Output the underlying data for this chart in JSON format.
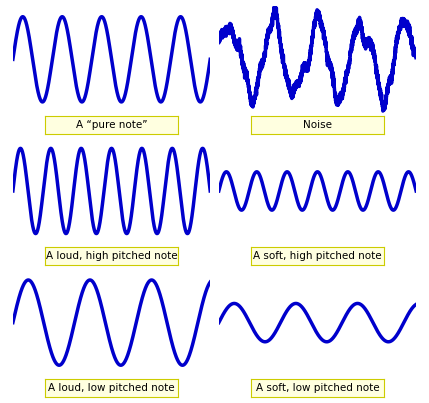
{
  "wave_color": "#0000CC",
  "line_width": 2.5,
  "background_color": "#FFFFFF",
  "label_bg_color": "#FFFFE0",
  "label_border_color": "#CCCC00",
  "label_text_color": "#000000",
  "label_fontsize": 7.5,
  "panels": [
    {
      "row": 0,
      "col": 0,
      "label": "A “pure note”",
      "type": "pure",
      "freq": 5.0,
      "amplitude": 1.0,
      "noise": 0,
      "noise_harmonics": []
    },
    {
      "row": 0,
      "col": 1,
      "label": "Noise",
      "type": "noise",
      "freq": 4.5,
      "amplitude": 0.85,
      "noise": 0.3,
      "noise_harmonics": [
        1.7,
        2.3,
        3.1,
        4.7,
        6.2
      ]
    },
    {
      "row": 1,
      "col": 0,
      "label": "A loud, high pitched note",
      "type": "pure",
      "freq": 6.5,
      "amplitude": 1.0,
      "noise": 0,
      "noise_harmonics": []
    },
    {
      "row": 1,
      "col": 1,
      "label": "A soft, high pitched note",
      "type": "pure",
      "freq": 6.5,
      "amplitude": 0.45,
      "noise": 0,
      "noise_harmonics": []
    },
    {
      "row": 2,
      "col": 0,
      "label": "A loud, low pitched note",
      "type": "pure",
      "freq": 3.2,
      "amplitude": 1.0,
      "noise": 0,
      "noise_harmonics": []
    },
    {
      "row": 2,
      "col": 1,
      "label": "A soft, low pitched note",
      "type": "pure",
      "freq": 3.2,
      "amplitude": 0.45,
      "noise": 0,
      "noise_harmonics": []
    }
  ]
}
